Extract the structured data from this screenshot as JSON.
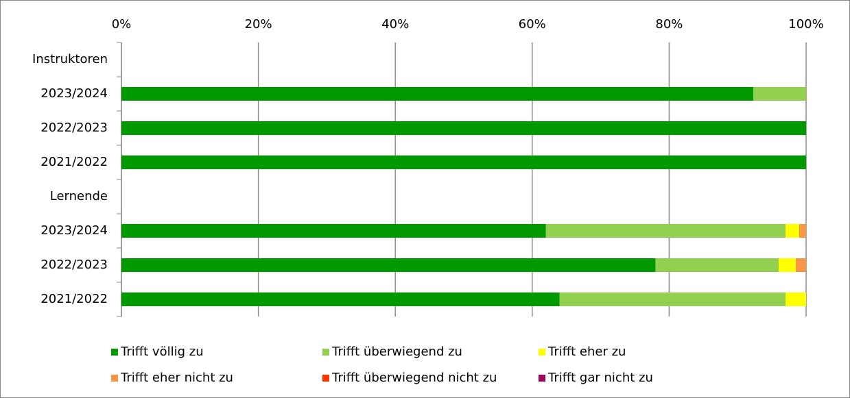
{
  "chart_data": {
    "type": "stacked_bar_horizontal",
    "categories": [
      "Instruktoren",
      "2023/2024",
      "2022/2023",
      "2021/2022",
      "Lernende",
      "2023/2024",
      "2022/2023",
      "2021/2022"
    ],
    "series": [
      {
        "name": "Trifft völlig zu",
        "color": "#009900",
        "values": [
          null,
          92.3,
          100,
          100,
          null,
          62,
          78,
          64
        ]
      },
      {
        "name": "Trifft überwiegend zu",
        "color": "#92d050",
        "values": [
          null,
          7.7,
          0,
          0,
          null,
          35,
          18,
          33
        ]
      },
      {
        "name": "Trifft eher zu",
        "color": "#ffff00",
        "values": [
          null,
          0,
          0,
          0,
          null,
          2,
          2.5,
          3
        ]
      },
      {
        "name": "Trifft eher nicht zu",
        "color": "#f79646",
        "values": [
          null,
          0,
          0,
          0,
          null,
          1,
          1.5,
          0
        ]
      },
      {
        "name": "Trifft überwiegend nicht zu",
        "color": "#ff3300",
        "values": [
          null,
          0,
          0,
          0,
          null,
          0,
          0,
          0
        ]
      },
      {
        "name": "Trifft gar nicht zu",
        "color": "#a0005a",
        "values": [
          null,
          0,
          0,
          0,
          null,
          0,
          0,
          0
        ]
      }
    ],
    "xlim": [
      0,
      100
    ],
    "xticks": [
      {
        "value": 0,
        "label": "0%"
      },
      {
        "value": 20,
        "label": "20%"
      },
      {
        "value": 40,
        "label": "40%"
      },
      {
        "value": 60,
        "label": "60%"
      },
      {
        "value": 80,
        "label": "80%"
      },
      {
        "value": 100,
        "label": "100%"
      }
    ],
    "grid": true,
    "legend": "bottom"
  }
}
